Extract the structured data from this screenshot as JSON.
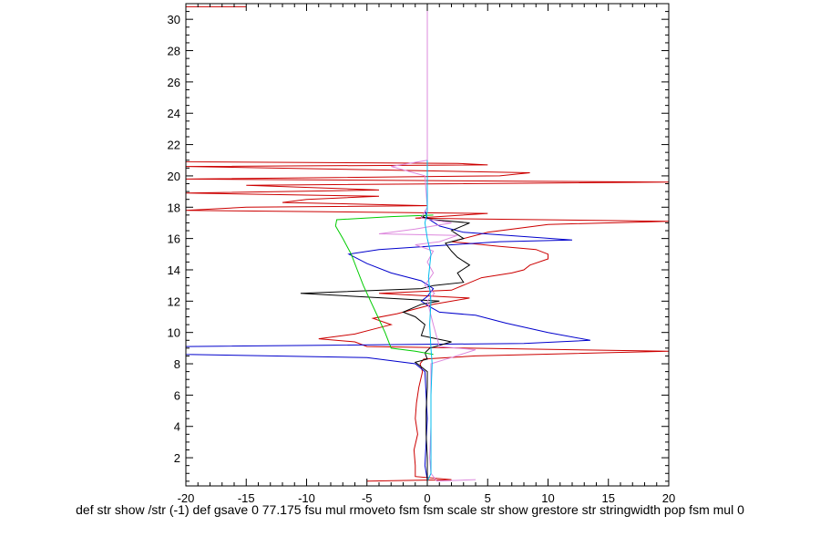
{
  "chart_data": {
    "type": "line",
    "xlabel_text": "def str show /str (-1) def gsave 0 77.175 fsu mul rmoveto fsm fsm scale str show grestore str stringwidth pop fsm mul 0",
    "xlim": [
      -20,
      20
    ],
    "ylim": [
      0.2,
      31
    ],
    "x_ticks": [
      -20,
      -15,
      -10,
      -5,
      0,
      5,
      10,
      15,
      20
    ],
    "y_ticks": [
      2,
      4,
      6,
      8,
      10,
      12,
      14,
      16,
      18,
      20,
      22,
      24,
      26,
      28,
      30
    ],
    "grid": false,
    "legend": "none",
    "series": [
      {
        "color": "#cc0000",
        "points": [
          [
            -5,
            0.5
          ],
          [
            2,
            0.6
          ],
          [
            -1,
            0.8
          ],
          [
            -1,
            1.5
          ],
          [
            -1.1,
            2.5
          ],
          [
            -0.8,
            3.5
          ],
          [
            -1,
            4.5
          ],
          [
            -0.9,
            5.5
          ],
          [
            -0.7,
            6.5
          ],
          [
            -0.4,
            7.5
          ],
          [
            -0.6,
            8
          ],
          [
            -0.3,
            8.3
          ],
          [
            4,
            8.5
          ],
          [
            20,
            8.8
          ],
          [
            -5,
            9.1
          ],
          [
            -6,
            9.4
          ],
          [
            -9,
            9.6
          ],
          [
            -6,
            9.9
          ],
          [
            -4.5,
            10.2
          ],
          [
            -3,
            10.5
          ],
          [
            -4.5,
            10.9
          ],
          [
            -2.5,
            11.2
          ],
          [
            0.5,
            11.8
          ],
          [
            3.5,
            12.2
          ],
          [
            1,
            12.3
          ],
          [
            -4,
            12.5
          ],
          [
            2,
            12.7
          ],
          [
            4.5,
            13.5
          ],
          [
            7,
            13.8
          ],
          [
            8,
            14
          ],
          [
            8.5,
            14.3
          ],
          [
            10,
            14.7
          ],
          [
            10,
            15
          ],
          [
            9,
            15.3
          ],
          [
            6,
            15.5
          ],
          [
            2,
            15.8
          ],
          [
            5,
            16.4
          ],
          [
            10,
            16.9
          ],
          [
            20,
            17.1
          ],
          [
            -1,
            17.3
          ],
          [
            5,
            17.6
          ],
          [
            -20,
            17.8
          ],
          [
            -15,
            18
          ],
          [
            0,
            18.1
          ],
          [
            -12,
            18.3
          ],
          [
            -10,
            18.5
          ],
          [
            -4,
            18.7
          ],
          [
            -20,
            18.9
          ],
          [
            -4,
            19.1
          ],
          [
            -15,
            19.4
          ],
          [
            20,
            19.6
          ],
          [
            -20,
            19.8
          ],
          [
            6,
            20
          ],
          [
            8.5,
            20.2
          ],
          [
            -5,
            20.4
          ],
          [
            -20,
            20.6
          ],
          [
            5,
            20.7
          ],
          [
            2.5,
            20.8
          ],
          [
            -20,
            20.9
          ],
          [
            -20,
            30.8
          ],
          [
            -15,
            30.8
          ]
        ]
      },
      {
        "color": "#0000cc",
        "points": [
          [
            0,
            0.6
          ],
          [
            -0.2,
            1.5
          ],
          [
            -0.1,
            3
          ],
          [
            0,
            4.5
          ],
          [
            -0.1,
            6
          ],
          [
            -0.2,
            7.5
          ],
          [
            -1,
            8
          ],
          [
            -5,
            8.4
          ],
          [
            -20,
            8.6
          ],
          [
            -20,
            9.1
          ],
          [
            8,
            9.3
          ],
          [
            13.5,
            9.5
          ],
          [
            10,
            10
          ],
          [
            6.5,
            10.6
          ],
          [
            4,
            11.1
          ],
          [
            1,
            11.3
          ],
          [
            0.3,
            11.6
          ],
          [
            -0.5,
            12
          ],
          [
            0,
            12.3
          ],
          [
            0.5,
            12.8
          ],
          [
            -0.5,
            13.3
          ],
          [
            -3,
            13.8
          ],
          [
            -5,
            14.4
          ],
          [
            -6.5,
            15
          ],
          [
            -4,
            15.3
          ],
          [
            0,
            15.5
          ],
          [
            6,
            15.8
          ],
          [
            12,
            15.9
          ],
          [
            3,
            16.4
          ],
          [
            1,
            16.8
          ],
          [
            0,
            17.3
          ],
          [
            -0.2,
            17.8
          ]
        ]
      },
      {
        "color": "#000000",
        "points": [
          [
            0,
            0.6
          ],
          [
            0,
            2
          ],
          [
            -0.1,
            3.5
          ],
          [
            -0.1,
            5
          ],
          [
            0,
            6.5
          ],
          [
            0,
            7.5
          ],
          [
            -1,
            8.1
          ],
          [
            0,
            8.3
          ],
          [
            -0.2,
            8.7
          ],
          [
            0.2,
            9
          ],
          [
            2,
            9.4
          ],
          [
            -0.5,
            9.8
          ],
          [
            -0.2,
            10.5
          ],
          [
            -1,
            11
          ],
          [
            -2,
            11.3
          ],
          [
            -0.5,
            11.8
          ],
          [
            1,
            12
          ],
          [
            -10.5,
            12.5
          ],
          [
            -0.5,
            12.8
          ],
          [
            0.5,
            13
          ],
          [
            3,
            13.2
          ],
          [
            2.5,
            13.8
          ],
          [
            3.5,
            14.3
          ],
          [
            2.5,
            14.8
          ],
          [
            2,
            15.2
          ],
          [
            1.5,
            15.7
          ],
          [
            3,
            16
          ],
          [
            2,
            16.5
          ],
          [
            3.5,
            17
          ],
          [
            0.5,
            17.2
          ],
          [
            -0.5,
            17.4
          ],
          [
            0,
            17.5
          ]
        ]
      },
      {
        "color": "#00cc00",
        "points": [
          [
            0.5,
            8.6
          ],
          [
            -1,
            8.8
          ],
          [
            -3,
            9
          ],
          [
            -3.5,
            10
          ],
          [
            -4.1,
            11
          ],
          [
            -4.7,
            12
          ],
          [
            -5.3,
            13
          ],
          [
            -5.8,
            14
          ],
          [
            -6.3,
            15
          ],
          [
            -7,
            16
          ],
          [
            -7.6,
            16.8
          ],
          [
            -7.5,
            17.2
          ],
          [
            -3,
            17.4
          ],
          [
            0.5,
            17.5
          ]
        ]
      },
      {
        "color": "#dd88dd",
        "points": [
          [
            4,
            0.6
          ],
          [
            0.8,
            0.5
          ],
          [
            0.3,
            1
          ],
          [
            0.2,
            2
          ],
          [
            0.3,
            4
          ],
          [
            0.3,
            6
          ],
          [
            0.3,
            8
          ],
          [
            2,
            8.4
          ],
          [
            4,
            8.9
          ],
          [
            1,
            9.1
          ],
          [
            0.5,
            10.5
          ],
          [
            0,
            12
          ],
          [
            0.6,
            12.5
          ],
          [
            -0.2,
            13
          ],
          [
            0.5,
            13.8
          ],
          [
            0,
            14.5
          ],
          [
            0.5,
            15.2
          ],
          [
            -1,
            15.6
          ],
          [
            1,
            15.8
          ],
          [
            2.5,
            16.2
          ],
          [
            -4,
            16.3
          ],
          [
            -1,
            16.6
          ],
          [
            2,
            17
          ],
          [
            -0.5,
            17.3
          ],
          [
            0,
            18
          ],
          [
            -0.2,
            20
          ],
          [
            -3,
            20.6
          ],
          [
            0,
            21
          ],
          [
            0,
            31
          ]
        ]
      },
      {
        "color": "#00bbee",
        "points": [
          [
            0,
            0.5
          ],
          [
            0.3,
            1
          ],
          [
            0.3,
            3
          ],
          [
            0.3,
            6
          ],
          [
            0.4,
            8
          ],
          [
            0.3,
            9
          ],
          [
            0.2,
            10.5
          ],
          [
            0.3,
            12
          ],
          [
            0.1,
            13.5
          ],
          [
            0.3,
            15
          ],
          [
            0,
            16
          ],
          [
            -0.2,
            17
          ],
          [
            0,
            17.7
          ],
          [
            0,
            18
          ],
          [
            0,
            21
          ]
        ]
      }
    ]
  }
}
